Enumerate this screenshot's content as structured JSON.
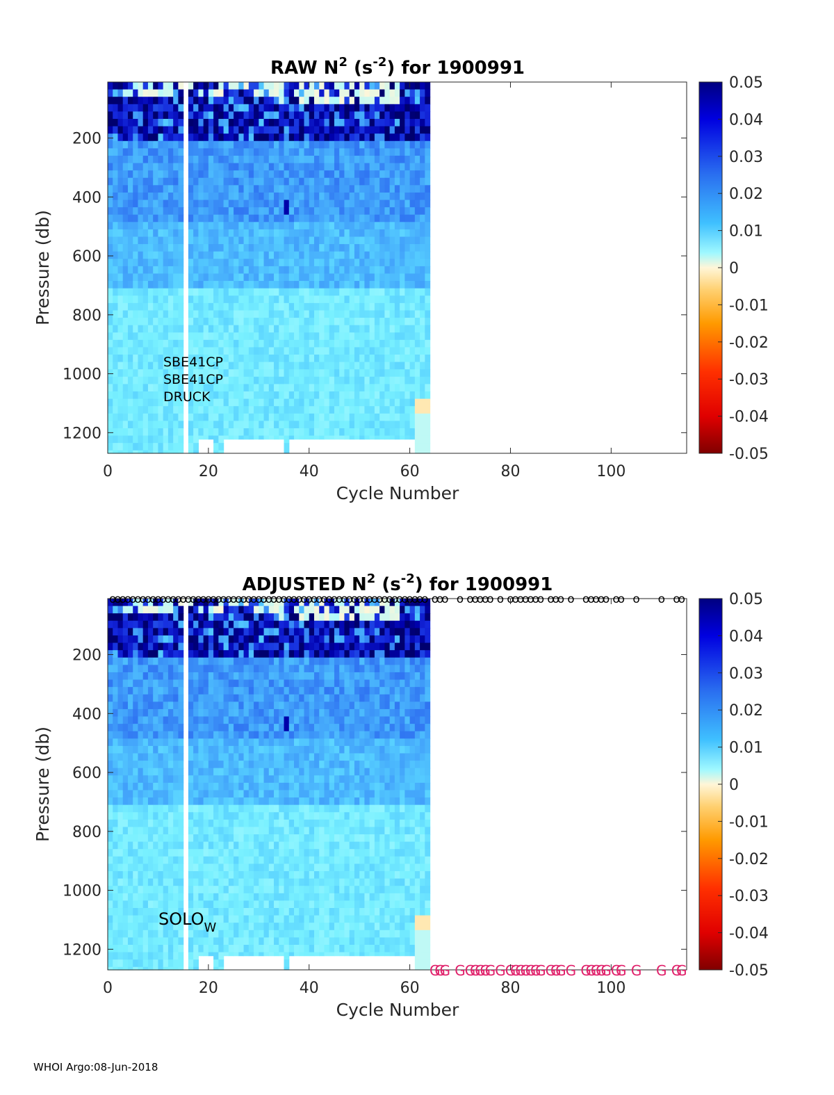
{
  "footer": "WHOI Argo:08-Jun-2018",
  "chart_data": [
    {
      "type": "heatmap",
      "title": {
        "pre": "RAW N",
        "sup1": "2",
        "mid": " (s",
        "sup2": "-2",
        "post": ") for 1900991"
      },
      "xlabel": "Cycle Number",
      "ylabel": "Pressure (db)",
      "xlim": [
        0,
        115
      ],
      "ylim": [
        1270,
        10
      ],
      "xticks": [
        "0",
        "20",
        "40",
        "60",
        "80",
        "100"
      ],
      "yticks": [
        "200",
        "400",
        "600",
        "800",
        "1000",
        "1200"
      ],
      "colorbar": {
        "ticks": [
          "0.05",
          "0.04",
          "0.03",
          "0.02",
          "0.01",
          "0",
          "-0.01",
          "-0.02",
          "-0.03",
          "-0.04",
          "-0.05"
        ],
        "range": [
          -0.05,
          0.05
        ]
      },
      "sensors": [
        "SBE41CP",
        "SBE41CP",
        "DRUCK"
      ],
      "data_coverage": {
        "first_cycle": 0,
        "last_cycle": 63,
        "missing_cycles": [
          15
        ],
        "description_values": "N² mostly 0.005–0.02 s⁻² below 200 db, up to >0.05 s⁻² near 100–200 db, near 0 in surface layer"
      }
    },
    {
      "type": "heatmap",
      "title": {
        "pre": "ADJUSTED N",
        "sup1": "2",
        "mid": " (s",
        "sup2": "-2",
        "post": ") for 1900991"
      },
      "xlabel": "Cycle Number",
      "ylabel": "Pressure (db)",
      "xlim": [
        0,
        115
      ],
      "ylim": [
        1270,
        10
      ],
      "xticks": [
        "0",
        "20",
        "40",
        "60",
        "80",
        "100"
      ],
      "yticks": [
        "200",
        "400",
        "600",
        "800",
        "1000",
        "1200"
      ],
      "colorbar": {
        "ticks": [
          "0.05",
          "0.04",
          "0.03",
          "0.02",
          "0.01",
          "0",
          "-0.01",
          "-0.02",
          "-0.03",
          "-0.04",
          "-0.05"
        ],
        "range": [
          -0.05,
          0.05
        ]
      },
      "float_type": {
        "base": "SOLO",
        "sub": "W"
      },
      "top_markers": {
        "glyph": "o",
        "cycles": [
          1,
          2,
          3,
          4,
          5,
          6,
          7,
          8,
          9,
          10,
          11,
          12,
          13,
          14,
          15,
          16,
          17,
          18,
          19,
          20,
          21,
          22,
          23,
          24,
          25,
          26,
          27,
          28,
          29,
          30,
          31,
          32,
          33,
          34,
          35,
          36,
          37,
          38,
          39,
          40,
          41,
          42,
          43,
          44,
          45,
          46,
          47,
          48,
          49,
          50,
          51,
          52,
          53,
          54,
          55,
          56,
          57,
          58,
          59,
          60,
          61,
          62,
          63,
          65,
          66,
          67,
          70,
          72,
          73,
          74,
          75,
          76,
          78,
          80,
          81,
          82,
          83,
          84,
          85,
          86,
          88,
          89,
          90,
          92,
          95,
          96,
          97,
          98,
          99,
          101,
          102,
          105,
          110,
          113,
          114
        ]
      },
      "bottom_markers": {
        "glyph": "G",
        "cycles": [
          65,
          66,
          67,
          70,
          72,
          73,
          74,
          75,
          76,
          78,
          80,
          81,
          82,
          83,
          84,
          85,
          86,
          88,
          89,
          90,
          92,
          95,
          96,
          97,
          98,
          99,
          101,
          102,
          105,
          110,
          113,
          114
        ]
      }
    }
  ]
}
